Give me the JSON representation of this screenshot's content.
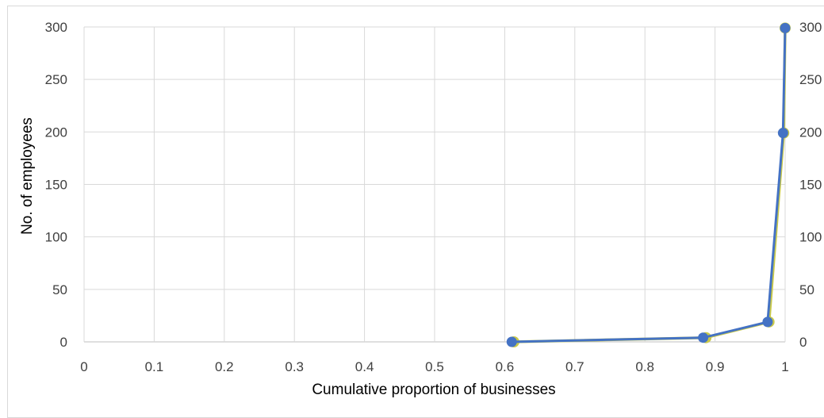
{
  "chart_data": {
    "type": "scatter",
    "title": "",
    "xlabel": "Cumulative proportion of businesses",
    "ylabel": "No. of employees",
    "xlim": [
      0,
      1
    ],
    "ylim": [
      0,
      300
    ],
    "secondary_ylim": [
      0,
      300
    ],
    "grid": true,
    "legend": "none",
    "x_ticks": [
      "0",
      "0.1",
      "0.2",
      "0.3",
      "0.4",
      "0.5",
      "0.6",
      "0.7",
      "0.8",
      "0.9",
      "1"
    ],
    "y_ticks": [
      "0",
      "50",
      "100",
      "150",
      "200",
      "250",
      "300"
    ],
    "secondary_y_ticks": [
      "0",
      "50",
      "100",
      "150",
      "200",
      "250",
      "300"
    ],
    "series": [
      {
        "points": [
          {
            "x": 0.61,
            "y": 0
          },
          {
            "x": 0.883,
            "y": 4
          },
          {
            "x": 0.975,
            "y": 19
          },
          {
            "x": 0.997,
            "y": 199
          },
          {
            "x": 1.0,
            "y": 299
          }
        ],
        "color": "#4472C4"
      },
      {
        "points": [
          {
            "x": 0.613,
            "y": 0
          },
          {
            "x": 0.887,
            "y": 4
          },
          {
            "x": 0.977,
            "y": 19
          },
          {
            "x": 0.998,
            "y": 199
          },
          {
            "x": 1.0,
            "y": 299
          }
        ],
        "color": "#C9C94A"
      }
    ],
    "colors": {
      "grid": "#d9d9d9",
      "axis": "#bfbfbf",
      "tick_text": "#404040"
    }
  }
}
